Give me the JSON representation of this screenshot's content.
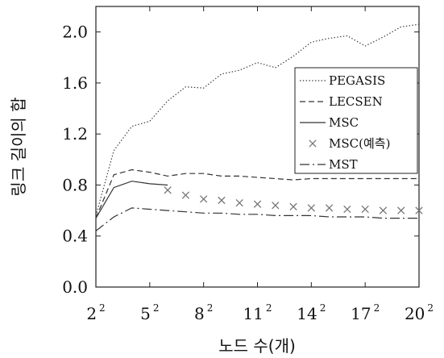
{
  "chart_data": {
    "type": "line",
    "xlabel": "노드 수(개)",
    "ylabel": "링크 길이의 합",
    "xlim": [
      4,
      20
    ],
    "ylim": [
      0.0,
      2.2
    ],
    "grid": false,
    "legend_placement": "center-right",
    "x_ticks": [
      {
        "value": 4,
        "base": "2",
        "exp": "2"
      },
      {
        "value": 7,
        "base": "5",
        "exp": "2"
      },
      {
        "value": 10,
        "base": "8",
        "exp": "2"
      },
      {
        "value": 13,
        "base": "11",
        "exp": "2"
      },
      {
        "value": 16,
        "base": "14",
        "exp": "2"
      },
      {
        "value": 19,
        "base": "17",
        "exp": "2"
      },
      {
        "value": 22,
        "base": "20",
        "exp": "2"
      }
    ],
    "y_ticks": [
      "0.0",
      "0.4",
      "0.8",
      "1.2",
      "1.6",
      "2.0"
    ],
    "series": [
      {
        "name": "PEGASIS",
        "style": "dotted",
        "color": "#333333",
        "x": [
          2,
          3,
          4,
          5,
          6,
          7,
          8,
          9,
          10,
          11,
          12,
          13,
          14,
          15,
          16,
          17,
          18,
          19,
          20
        ],
        "y": [
          0.56,
          1.07,
          1.26,
          1.3,
          1.46,
          1.57,
          1.56,
          1.67,
          1.7,
          1.76,
          1.72,
          1.81,
          1.92,
          1.95,
          1.97,
          1.89,
          1.96,
          2.04,
          2.06
        ]
      },
      {
        "name": "LECSEN",
        "style": "dashed",
        "color": "#333333",
        "x": [
          2,
          3,
          4,
          5,
          6,
          7,
          8,
          9,
          10,
          11,
          12,
          13,
          14,
          15,
          16,
          17,
          18,
          19,
          20
        ],
        "y": [
          0.54,
          0.88,
          0.92,
          0.9,
          0.87,
          0.89,
          0.89,
          0.87,
          0.87,
          0.86,
          0.85,
          0.84,
          0.85,
          0.85,
          0.85,
          0.85,
          0.85,
          0.85,
          0.85
        ]
      },
      {
        "name": "MSC",
        "style": "solid",
        "color": "#333333",
        "x": [
          2,
          3,
          4,
          5,
          6
        ],
        "y": [
          0.54,
          0.78,
          0.83,
          0.81,
          0.8
        ]
      },
      {
        "name": "MSC(예측)",
        "style": "markers",
        "color": "#777777",
        "x": [
          6,
          7,
          8,
          9,
          10,
          11,
          12,
          13,
          14,
          15,
          16,
          17,
          18,
          19,
          20
        ],
        "y": [
          0.76,
          0.72,
          0.69,
          0.68,
          0.66,
          0.65,
          0.64,
          0.63,
          0.62,
          0.62,
          0.61,
          0.61,
          0.6,
          0.6,
          0.6
        ]
      },
      {
        "name": "MST",
        "style": "dashdot",
        "color": "#333333",
        "x": [
          2,
          3,
          4,
          5,
          6,
          7,
          8,
          9,
          10,
          11,
          12,
          13,
          14,
          15,
          16,
          17,
          18,
          19,
          20
        ],
        "y": [
          0.44,
          0.55,
          0.62,
          0.61,
          0.6,
          0.59,
          0.58,
          0.58,
          0.57,
          0.57,
          0.56,
          0.56,
          0.56,
          0.55,
          0.55,
          0.55,
          0.54,
          0.54,
          0.54
        ]
      }
    ]
  }
}
